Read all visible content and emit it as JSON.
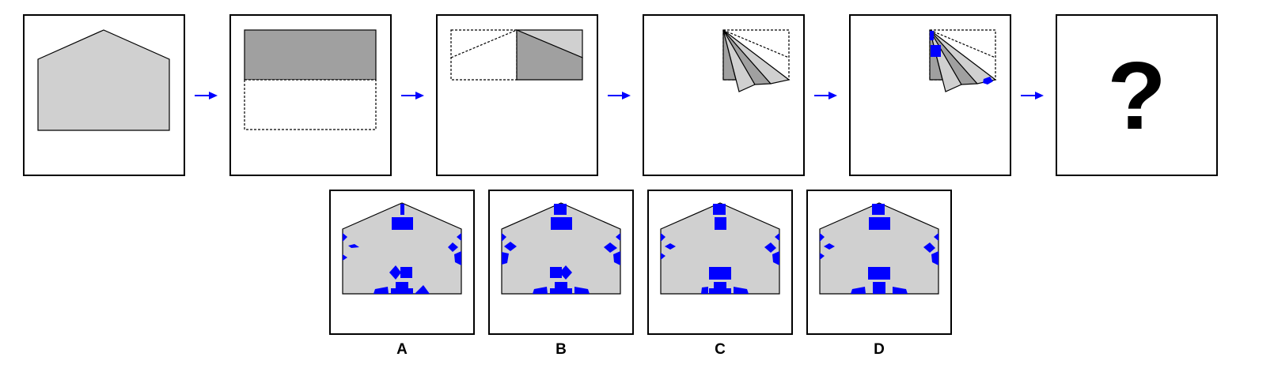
{
  "colors": {
    "paper": "#d0d0d0",
    "paper_dark": "#a0a0a0",
    "holes": "#0000ff",
    "outline": "#000000",
    "arrow": "#0000ff"
  },
  "sequence": {
    "steps": [
      {
        "name": "step-1-unfolded-paper"
      },
      {
        "name": "step-2-fold-up"
      },
      {
        "name": "step-3-fold-left"
      },
      {
        "name": "step-4-fan-fold"
      },
      {
        "name": "step-5-punch-holes"
      }
    ],
    "question_mark": "?"
  },
  "options": [
    {
      "label": "A"
    },
    {
      "label": "B"
    },
    {
      "label": "C"
    },
    {
      "label": "D"
    }
  ]
}
